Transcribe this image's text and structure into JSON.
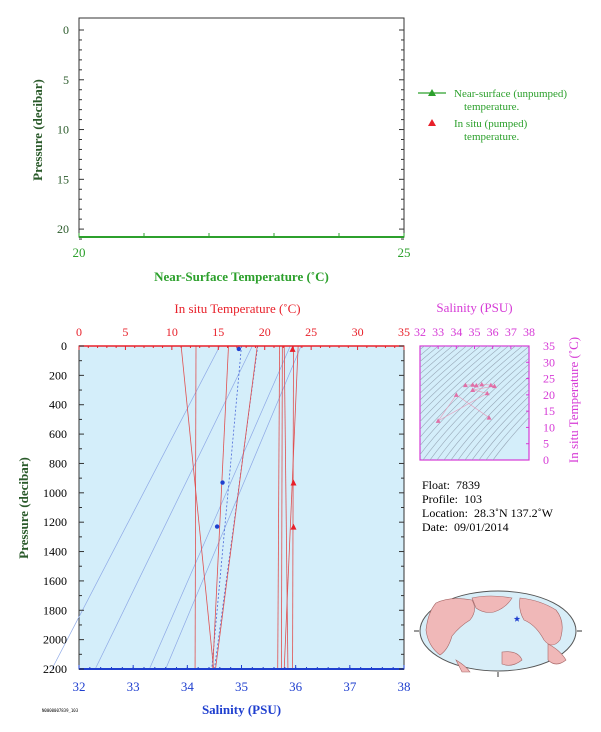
{
  "chart_data": [
    {
      "type": "line",
      "panel": "near-surface temperature",
      "xlabel": "Near-Surface Temperature (˚C)",
      "ylabel": "Pressure (decibar)",
      "xlim": [
        20,
        25
      ],
      "ylim": [
        22,
        0
      ],
      "x_ticks": [
        "20",
        "25"
      ],
      "y_ticks": [
        "0",
        "5",
        "10",
        "15",
        "20"
      ],
      "series": [],
      "legend": {
        "placement": "right",
        "entries": [
          {
            "label_line1": "Near-surface (unpumped)",
            "label_line2": "temperature.",
            "marker": "line-triangle"
          },
          {
            "label_line1": "In situ (pumped)",
            "label_line2": "temperature.",
            "marker": "triangle"
          }
        ]
      }
    },
    {
      "type": "scatter",
      "panel": "profile",
      "title_top": "In situ Temperature (˚C)",
      "xlabel": "Salinity (PSU)",
      "ylabel": "Pressure (decibar)",
      "top_axis_ticks": [
        "0",
        "5",
        "10",
        "15",
        "20",
        "25",
        "30",
        "35"
      ],
      "top_xlim": [
        0,
        35
      ],
      "bottom_axis_ticks": [
        "32",
        "33",
        "34",
        "35",
        "36",
        "37",
        "38"
      ],
      "bottom_xlim": [
        32,
        38
      ],
      "y_ticks": [
        "0",
        "200",
        "400",
        "600",
        "800",
        "1000",
        "1200",
        "1400",
        "1600",
        "1800",
        "2000",
        "2200"
      ],
      "ylim": [
        2200,
        0
      ],
      "series": [
        {
          "marker": "triangle",
          "color": "#e8202a",
          "temperature": [
            23.0,
            23.1,
            23.1
          ],
          "pressure": [
            20,
            930,
            1230
          ]
        },
        {
          "marker": "circle",
          "color": "#1f3fcf",
          "salinity": [
            34.95,
            34.65,
            34.55
          ],
          "pressure": [
            20,
            930,
            1230
          ]
        }
      ]
    },
    {
      "type": "scatter",
      "panel": "T-S diagram",
      "title_top": "Salinity (PSU)",
      "ylabel_right": "In situ Temperature (˚C)",
      "x_ticks": [
        "32",
        "33",
        "34",
        "35",
        "36",
        "37",
        "38"
      ],
      "xlim": [
        32,
        38
      ],
      "y_ticks": [
        "0",
        "5",
        "10",
        "15",
        "20",
        "25",
        "30",
        "35"
      ],
      "ylim": [
        0,
        35
      ],
      "points": {
        "salinity": [
          34.5,
          34.9,
          35.1,
          35.4,
          35.9,
          36.1,
          34.9,
          35.7,
          33.0,
          34.0,
          35.8
        ],
        "temperature": [
          23.0,
          23.1,
          22.9,
          23.2,
          23.0,
          22.7,
          21.5,
          20.5,
          12.0,
          20.0,
          13.0
        ]
      }
    }
  ],
  "info": {
    "float_label": "Float:",
    "float_value": "7839",
    "profile_label": "Profile:",
    "profile_value": "103",
    "location_label": "Location:",
    "location_value": "28.3˚N  137.2˚W",
    "date_label": "Date:",
    "date_value": "09/01/2014"
  },
  "colors": {
    "green": "#2ca02c",
    "red": "#e8202a",
    "blue": "#1f3fcf",
    "magenta": "#d63ad6",
    "plot_fill": "#d4eefa",
    "dark_green_text": "#2a5a2a"
  },
  "map": {
    "marker": "star",
    "location": "28.3˚N 137.2˚W"
  },
  "code_tag": "N0000007839_103"
}
